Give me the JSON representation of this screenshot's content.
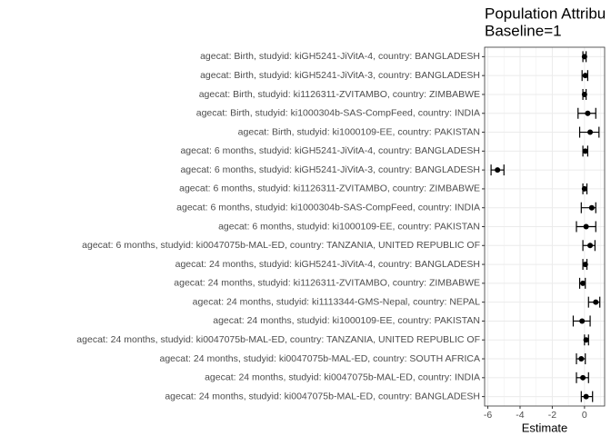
{
  "chart_data": {
    "type": "forest",
    "title": "Population Attribu",
    "subtitle": "Baseline=1",
    "xlabel": "Estimate",
    "categories": [
      "agecat: Birth, studyid: kiGH5241-JiVitA-4, country: BANGLADESH",
      "agecat: Birth, studyid: kiGH5241-JiVitA-3, country: BANGLADESH",
      "agecat: Birth, studyid: ki1126311-ZVITAMBO, country: ZIMBABWE",
      "agecat: Birth, studyid: ki1000304b-SAS-CompFeed, country: INDIA",
      "agecat: Birth, studyid: ki1000109-EE, country: PAKISTAN",
      "agecat: 6 months, studyid: kiGH5241-JiVitA-4, country: BANGLADESH",
      "agecat: 6 months, studyid: kiGH5241-JiVitA-3, country: BANGLADESH",
      "agecat: 6 months, studyid: ki1126311-ZVITAMBO, country: ZIMBABWE",
      "agecat: 6 months, studyid: ki1000304b-SAS-CompFeed, country: INDIA",
      "agecat: 6 months, studyid: ki1000109-EE, country: PAKISTAN",
      "agecat: 6 months, studyid: ki0047075b-MAL-ED, country: TANZANIA, UNITED REPUBLIC OF",
      "agecat: 24 months, studyid: kiGH5241-JiVitA-4, country: BANGLADESH",
      "agecat: 24 months, studyid: ki1126311-ZVITAMBO, country: ZIMBABWE",
      "agecat: 24 months, studyid: ki1113344-GMS-Nepal, country: NEPAL",
      "agecat: 24 months, studyid: ki1000109-EE, country: PAKISTAN",
      "agecat: 24 months, studyid: ki0047075b-MAL-ED, country: TANZANIA, UNITED REPUBLIC OF",
      "agecat: 24 months, studyid: ki0047075b-MAL-ED, country: SOUTH AFRICA",
      "agecat: 24 months, studyid: ki0047075b-MAL-ED, country: INDIA",
      "agecat: 24 months, studyid: ki0047075b-MAL-ED, country: BANGLADESH"
    ],
    "values": [
      0,
      0.05,
      0,
      0.2,
      0.35,
      0.05,
      -5.4,
      0,
      0.45,
      0.1,
      0.35,
      0.05,
      -0.1,
      0.7,
      -0.15,
      0.1,
      -0.2,
      -0.1,
      0.1
    ],
    "lower": [
      -0.1,
      -0.15,
      -0.1,
      -0.4,
      -0.3,
      -0.1,
      -5.8,
      -0.1,
      -0.2,
      -0.5,
      -0.1,
      -0.1,
      -0.3,
      0.25,
      -0.7,
      0,
      -0.5,
      -0.5,
      -0.2
    ],
    "upper": [
      0.1,
      0.2,
      0.1,
      0.7,
      0.9,
      0.2,
      -5.0,
      0.15,
      0.7,
      0.7,
      0.65,
      0.15,
      0.05,
      0.95,
      0.35,
      0.25,
      0.05,
      0.25,
      0.5
    ],
    "color": "#000000",
    "xlim": [
      -6.2,
      1.25
    ],
    "xticks": [
      -6,
      -4,
      -2,
      0
    ],
    "xminor": [
      -5,
      -3,
      -1,
      1
    ],
    "grid": true
  }
}
